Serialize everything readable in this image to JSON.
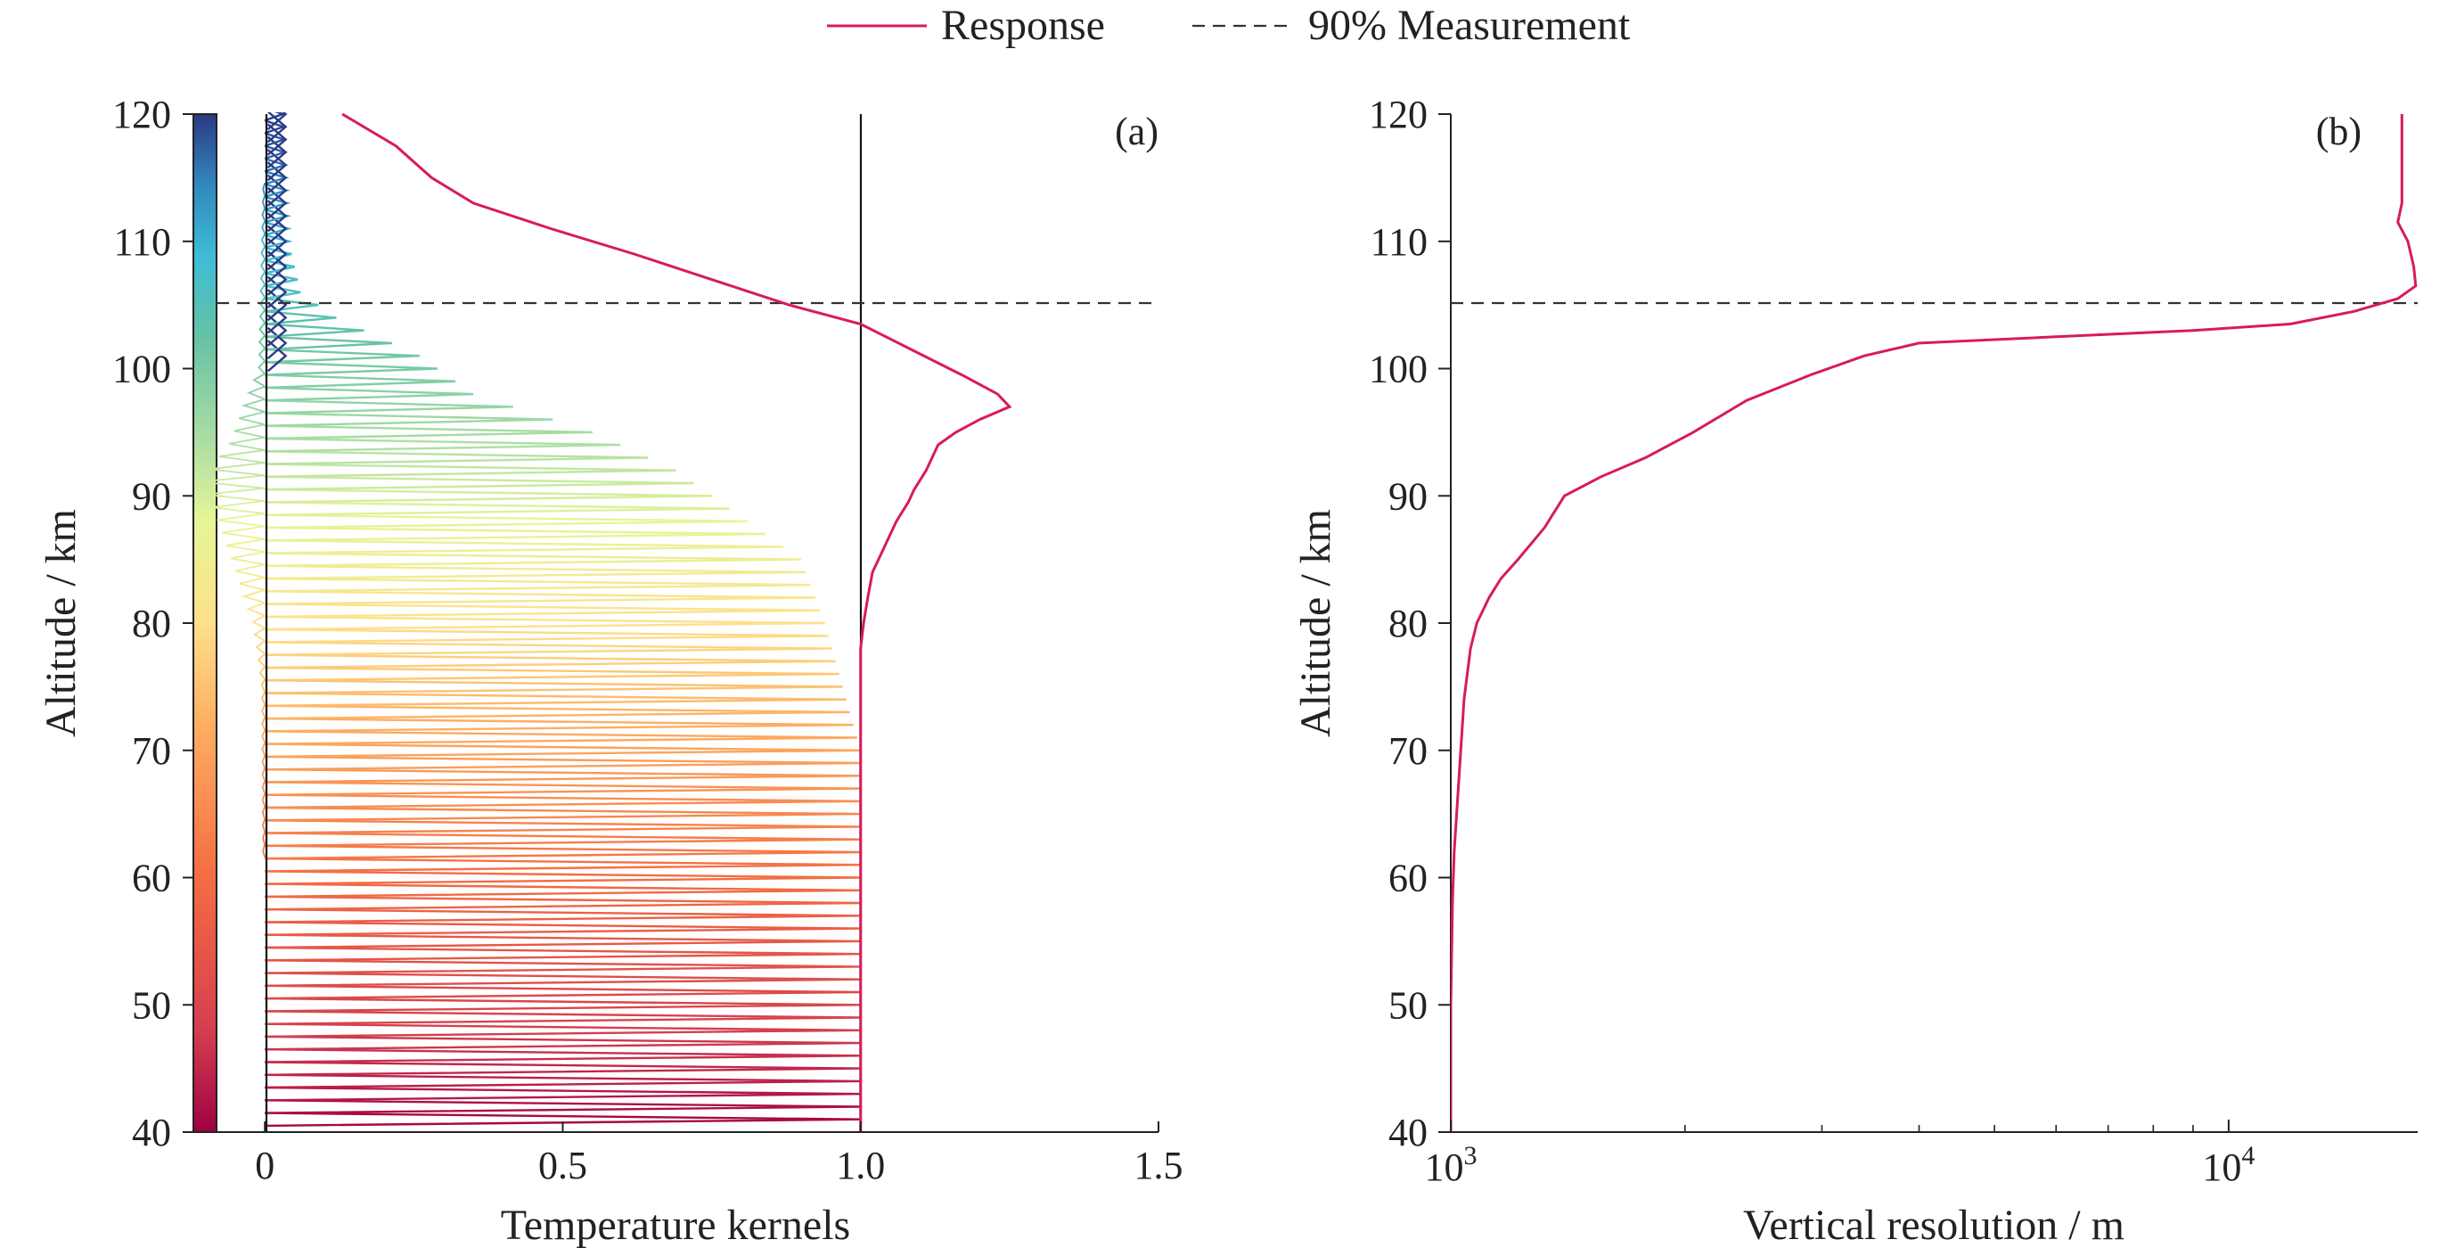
{
  "legend": {
    "placement": "top-center",
    "entries": [
      {
        "label": "Response",
        "color": "#d81b5a",
        "style": "solid"
      },
      {
        "label": "90% Measurement",
        "color": "#333333",
        "style": "dashed"
      }
    ]
  },
  "chart_data": [
    {
      "type": "line",
      "panel_label": "(a)",
      "xlabel": "Temperature kernels",
      "ylabel": "Altitude / km",
      "xlim": [
        -0.12,
        1.5
      ],
      "ylim": [
        40,
        120
      ],
      "xticks": [
        {
          "v": 0,
          "label": "0"
        },
        {
          "v": 0.5,
          "label": "0.5"
        },
        {
          "v": 1.0,
          "label": "1.0"
        },
        {
          "v": 1.5,
          "label": "1.5"
        }
      ],
      "yticks": [
        {
          "v": 40,
          "label": "40"
        },
        {
          "v": 50,
          "label": "50"
        },
        {
          "v": 60,
          "label": "60"
        },
        {
          "v": 70,
          "label": "70"
        },
        {
          "v": 80,
          "label": "80"
        },
        {
          "v": 90,
          "label": "90"
        },
        {
          "v": 100,
          "label": "100"
        },
        {
          "v": 110,
          "label": "110"
        },
        {
          "v": 120,
          "label": "120"
        }
      ],
      "grid": false,
      "reference_lines": {
        "x": [
          0,
          1.0
        ],
        "y_dashed": 105
      },
      "colorbar": {
        "range": [
          40,
          120
        ],
        "colormap": "spectral",
        "placement": "left"
      },
      "kernels": {
        "altitude_start": 41,
        "altitude_end": 120,
        "altitude_step": 1,
        "peak_envelope": {
          "altitudes": [
            40,
            70,
            80,
            85,
            88,
            92,
            95,
            98,
            101,
            104,
            106,
            110,
            120
          ],
          "peaks": [
            1.0,
            1.0,
            0.94,
            0.9,
            0.81,
            0.69,
            0.55,
            0.35,
            0.26,
            0.12,
            0.06,
            0.04,
            0.03
          ]
        },
        "negative_lobe": {
          "altitudes": [
            40,
            75,
            80,
            84,
            88,
            91,
            94,
            100,
            120
          ],
          "min": [
            0,
            -0.005,
            -0.02,
            -0.05,
            -0.08,
            -0.11,
            -0.06,
            -0.01,
            0
          ]
        }
      },
      "series": [
        {
          "name": "Response",
          "x": [
            1.0,
            1.0,
            1.0,
            1.0,
            1.0,
            1.005,
            1.012,
            1.02,
            1.04,
            1.06,
            1.08,
            1.09,
            1.11,
            1.12,
            1.13,
            1.16,
            1.2,
            1.25,
            1.23,
            1.17,
            1.0,
            0.88,
            0.75,
            0.62,
            0.48,
            0.35,
            0.28,
            0.22,
            0.13
          ],
          "y": [
            40,
            60,
            70,
            74,
            78,
            80,
            82,
            84,
            86,
            88,
            89.5,
            90.5,
            92,
            93,
            94,
            95,
            96,
            97,
            98,
            99.5,
            103.5,
            105,
            107,
            109,
            111,
            113,
            115,
            117.5,
            120
          ],
          "color": "#d81b5a"
        }
      ]
    },
    {
      "type": "line",
      "panel_label": "(b)",
      "xlabel": "Vertical resolution / m",
      "ylabel": "Altitude / km",
      "xscale": "log",
      "xlim": [
        1000,
        17500
      ],
      "ylim": [
        40,
        120
      ],
      "xticks": [
        {
          "v": 1000,
          "base": "10",
          "exp": "3"
        },
        {
          "v": 10000,
          "base": "10",
          "exp": "4"
        }
      ],
      "yticks": [
        {
          "v": 40,
          "label": "40"
        },
        {
          "v": 50,
          "label": "50"
        },
        {
          "v": 60,
          "label": "60"
        },
        {
          "v": 70,
          "label": "70"
        },
        {
          "v": 80,
          "label": "80"
        },
        {
          "v": 90,
          "label": "90"
        },
        {
          "v": 100,
          "label": "100"
        },
        {
          "v": 110,
          "label": "110"
        },
        {
          "v": 120,
          "label": "120"
        }
      ],
      "grid": false,
      "reference_lines": {
        "y_dashed": 105
      },
      "series": [
        {
          "name": "Response",
          "x": [
            1000,
            1000,
            1005,
            1010,
            1020,
            1030,
            1040,
            1060,
            1080,
            1120,
            1160,
            1220,
            1320,
            1400,
            1560,
            1780,
            2050,
            2400,
            2900,
            3400,
            4000,
            6000,
            9000,
            12000,
            14500,
            16500,
            17400,
            17300,
            17000,
            16500,
            16700,
            16700
          ],
          "y": [
            40,
            50,
            58,
            62,
            66,
            70,
            74,
            78,
            80,
            82,
            83.5,
            85,
            87.5,
            90,
            91.5,
            93,
            95,
            97.5,
            99.5,
            101,
            102,
            102.5,
            103,
            103.5,
            104.5,
            105.5,
            106.5,
            108,
            110,
            111.5,
            113,
            120
          ],
          "color": "#d81b5a"
        }
      ]
    }
  ]
}
